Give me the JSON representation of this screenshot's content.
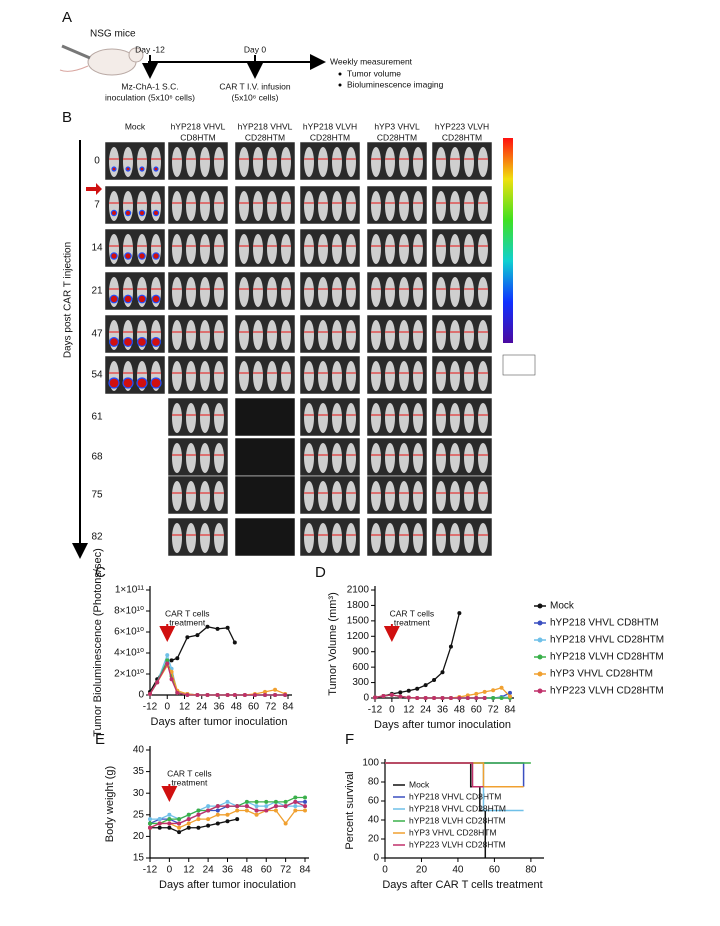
{
  "panel_a": {
    "label": "A",
    "mouse": "NSG mice",
    "day_start": "Day -12",
    "day_zero": "Day 0",
    "inoculation": [
      "Mz-ChA-1 S.C.",
      "inoculation (5x10⁶ cells)"
    ],
    "infusion": [
      "CAR T I.V. infusion",
      "(5x10⁶ cells)"
    ],
    "measurement": "Weekly measurement",
    "bullets": [
      "Tumor volume",
      "Bioluminescence imaging"
    ]
  },
  "panel_b": {
    "label": "B",
    "columns": [
      [
        "Mock"
      ],
      [
        "hYP218 VHVL",
        "CD8HTM"
      ],
      [
        "hYP218 VHVL",
        "CD28HTM"
      ],
      [
        "hYP218 VLVH",
        "CD28HTM"
      ],
      [
        "hYP3 VHVL",
        "CD28HTM"
      ],
      [
        "hYP223 VLVH",
        "CD28HTM"
      ]
    ],
    "rows": [
      "0",
      "7",
      "14",
      "21",
      "47",
      "54",
      "61",
      "68",
      "75",
      "82"
    ],
    "axis_label": "Days post CAR T injection"
  },
  "chart_data": [
    {
      "type": "line",
      "panel": "C",
      "ylabel": "Tumor Bioluminescence (Photons/sec)",
      "xlabel": "Days after tumor inoculation",
      "annotation": {
        "lines": [
          "CAR T cells",
          "treatment"
        ],
        "x": 0
      },
      "xlim": [
        -12,
        84
      ],
      "xticks": [
        -12,
        0,
        12,
        24,
        36,
        48,
        60,
        72,
        84
      ],
      "ylim": [
        0,
        100000000000
      ],
      "yticks": [
        0,
        {
          "value": 20000000000,
          "label": "2×10¹⁰"
        },
        {
          "value": 40000000000,
          "label": "4×10¹⁰"
        },
        {
          "value": 60000000000,
          "label": "6×10¹⁰"
        },
        {
          "value": 80000000000,
          "label": "8×10¹⁰"
        },
        {
          "value": 100000000000,
          "label": "1×10¹¹"
        }
      ],
      "x": [
        -12,
        -7,
        0,
        3,
        7,
        14,
        21,
        28,
        35,
        42,
        47,
        54,
        61,
        68,
        75,
        82
      ],
      "series": [
        {
          "color": "#111111",
          "values": [
            3000000000,
            15000000000,
            30000000000,
            33000000000,
            35000000000,
            55000000000,
            57000000000,
            65000000000,
            63000000000,
            64000000000,
            50000000000,
            null,
            null,
            null,
            null,
            null
          ]
        },
        {
          "color": "#3a4fc0",
          "values": [
            1000000000,
            12000000000,
            32000000000,
            20000000000,
            3000000000,
            1000000000,
            0,
            0,
            0,
            0,
            0,
            0,
            0,
            0,
            0,
            0
          ]
        },
        {
          "color": "#6fc0e8",
          "values": [
            1000000000,
            12000000000,
            38000000000,
            25000000000,
            3000000000,
            1000000000,
            0,
            0,
            0,
            0,
            0,
            0,
            0,
            0,
            0,
            0
          ]
        },
        {
          "color": "#3ab04a",
          "values": [
            1000000000,
            12000000000,
            33000000000,
            18000000000,
            2000000000,
            0,
            0,
            0,
            0,
            0,
            0,
            0,
            0,
            0,
            0,
            0
          ]
        },
        {
          "color": "#f0a030",
          "values": [
            1000000000,
            12000000000,
            28000000000,
            22000000000,
            4000000000,
            1000000000,
            0,
            0,
            0,
            0,
            0,
            0,
            1000000000,
            3000000000,
            5000000000,
            1000000000
          ]
        },
        {
          "color": "#c0306a",
          "values": [
            1000000000,
            12000000000,
            30000000000,
            15000000000,
            2000000000,
            0,
            0,
            0,
            0,
            0,
            0,
            0,
            0,
            0,
            0,
            0
          ]
        }
      ]
    },
    {
      "type": "line",
      "panel": "D",
      "ylabel": "Tumor Volume (mm³)",
      "xlabel": "Days after tumor inoculation",
      "legend": "right",
      "annotation": {
        "lines": [
          "CAR T cells",
          "treatment"
        ],
        "x": 0
      },
      "xlim": [
        -12,
        84
      ],
      "xticks": [
        -12,
        0,
        12,
        24,
        36,
        48,
        60,
        72,
        84
      ],
      "ylim": [
        0,
        2100
      ],
      "yticks": [
        0,
        300,
        600,
        900,
        1200,
        1500,
        1800,
        2100
      ],
      "x": [
        -12,
        -6,
        0,
        6,
        12,
        18,
        24,
        30,
        36,
        42,
        48,
        54,
        60,
        66,
        72,
        78,
        84
      ],
      "series": [
        {
          "name": "Mock",
          "color": "#111111",
          "values": [
            10,
            40,
            80,
            110,
            140,
            180,
            250,
            350,
            500,
            1000,
            1650,
            null,
            null,
            null,
            null,
            null,
            null
          ]
        },
        {
          "name": "hYP218 VHVL CD8HTM",
          "color": "#3a4fc0",
          "values": [
            10,
            40,
            60,
            30,
            10,
            0,
            0,
            0,
            0,
            0,
            0,
            0,
            0,
            0,
            0,
            20,
            100
          ]
        },
        {
          "name": "hYP218 VHVL CD28HTM",
          "color": "#6fc0e8",
          "values": [
            10,
            40,
            60,
            30,
            10,
            0,
            0,
            0,
            0,
            0,
            0,
            0,
            0,
            0,
            0,
            10,
            20
          ]
        },
        {
          "name": "hYP218 VLVH CD28HTM",
          "color": "#3ab04a",
          "values": [
            10,
            40,
            60,
            30,
            10,
            0,
            0,
            0,
            0,
            0,
            0,
            0,
            0,
            0,
            0,
            0,
            0
          ]
        },
        {
          "name": "hYP3 VHVL CD28HTM",
          "color": "#f0a030",
          "values": [
            10,
            40,
            60,
            30,
            10,
            0,
            0,
            0,
            0,
            0,
            20,
            50,
            80,
            120,
            150,
            200,
            30
          ]
        },
        {
          "name": "hYP223 VLVH CD28HTM",
          "color": "#c0306a",
          "values": [
            10,
            40,
            60,
            30,
            10,
            0,
            0,
            0,
            0,
            0,
            0,
            0,
            0,
            0,
            null,
            null,
            null
          ]
        }
      ]
    },
    {
      "type": "line",
      "panel": "E",
      "ylabel": "Body weight (g)",
      "xlabel": "Days after tumor inoculation",
      "annotation": {
        "lines": [
          "CAR T cells",
          "treatment"
        ],
        "x": 0
      },
      "xlim": [
        -12,
        84
      ],
      "xticks": [
        -12,
        0,
        12,
        24,
        36,
        48,
        60,
        72,
        84
      ],
      "ylim": [
        15,
        40
      ],
      "yticks": [
        15,
        20,
        25,
        30,
        35,
        40
      ],
      "x": [
        -12,
        -6,
        0,
        6,
        12,
        18,
        24,
        30,
        36,
        42,
        48,
        54,
        60,
        66,
        72,
        78,
        84
      ],
      "series": [
        {
          "color": "#111111",
          "values": [
            22,
            22,
            22,
            21,
            22,
            22,
            22.5,
            23,
            23.5,
            24,
            null,
            null,
            null,
            null,
            null,
            null,
            null
          ]
        },
        {
          "color": "#3a4fc0",
          "values": [
            23,
            24,
            24,
            23,
            24,
            25,
            26,
            26,
            27,
            27,
            27,
            26,
            26,
            27,
            27,
            28,
            28
          ]
        },
        {
          "color": "#6fc0e8",
          "values": [
            24,
            24,
            25,
            24,
            25,
            26,
            27,
            27,
            28,
            27,
            28,
            27,
            27,
            28,
            27,
            27,
            27
          ]
        },
        {
          "color": "#3ab04a",
          "values": [
            23,
            23,
            24,
            24,
            25,
            26,
            26,
            27,
            27,
            27,
            28,
            28,
            28,
            28,
            28,
            29,
            29
          ]
        },
        {
          "color": "#f0a030",
          "values": [
            22,
            23,
            23,
            22,
            23,
            24,
            24,
            25,
            25,
            26,
            26,
            25,
            26,
            26,
            23,
            26,
            26
          ]
        },
        {
          "color": "#c0306a",
          "values": [
            22,
            23,
            23,
            23,
            24,
            25,
            26,
            27,
            27,
            27,
            27,
            26,
            26,
            27,
            27,
            28,
            27
          ]
        }
      ]
    },
    {
      "type": "step",
      "panel": "F",
      "ylabel": "Percent survival",
      "xlabel": "Days after CAR T cells treatment",
      "legend": "inside",
      "xlim": [
        0,
        85
      ],
      "xticks": [
        0,
        20,
        40,
        60,
        80
      ],
      "ylim": [
        0,
        100
      ],
      "yticks": [
        0,
        20,
        40,
        60,
        80,
        100
      ],
      "series": [
        {
          "name": "Mock",
          "color": "#111111",
          "x": [
            0,
            47,
            52,
            55
          ],
          "values": [
            100,
            75,
            50,
            0
          ]
        },
        {
          "name": "hYP218 VHVL CD8HTM",
          "color": "#3a4fc0",
          "x": [
            0,
            76
          ],
          "values": [
            100,
            75
          ]
        },
        {
          "name": "hYP218 VHVL CD28HTM",
          "color": "#6fc0e8",
          "x": [
            0,
            54,
            76
          ],
          "values": [
            100,
            50,
            50
          ]
        },
        {
          "name": "hYP218 VLVH CD28HTM",
          "color": "#3ab04a",
          "x": [
            0,
            80
          ],
          "values": [
            100,
            100
          ]
        },
        {
          "name": "hYP3 VHVL CD28HTM",
          "color": "#f0a030",
          "x": [
            0,
            54,
            76
          ],
          "values": [
            100,
            75,
            75
          ]
        },
        {
          "name": "hYP223 VLVH CD28HTM",
          "color": "#c0306a",
          "x": [
            0,
            48,
            54
          ],
          "values": [
            100,
            75,
            75
          ]
        }
      ]
    }
  ]
}
